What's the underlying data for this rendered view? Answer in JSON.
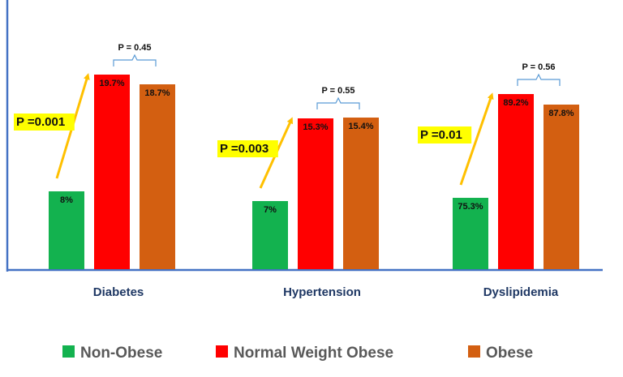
{
  "colors": {
    "non_obese": "#13b24f",
    "normal_weight_obese": "#ff0000",
    "obese": "#d35f11",
    "axis": "#4472c4",
    "arrow": "#ffc000",
    "highlight": "#ffff00",
    "bracket": "#5b9bd5",
    "category_text": "#1f3864",
    "legend_text": "#595959"
  },
  "chart_data": {
    "type": "bar",
    "categories": [
      "Diabetes",
      "Hypertension",
      "Dyslipidemia"
    ],
    "series": [
      {
        "name": "Non-Obese",
        "values": [
          8,
          7,
          75.3
        ],
        "labels": [
          "8%",
          "7%",
          "75.3%"
        ]
      },
      {
        "name": "Normal Weight Obese",
        "values": [
          19.7,
          15.3,
          89.2
        ],
        "labels": [
          "19.7%",
          "15.3%",
          "89.2%"
        ]
      },
      {
        "name": "Obese",
        "values": [
          18.7,
          15.4,
          87.8
        ],
        "labels": [
          "18.7%",
          "15.4%",
          "87.8%"
        ]
      }
    ],
    "annotations": {
      "significance": [
        "P =0.001",
        "P =0.003",
        "P =0.01"
      ],
      "bracket_p": [
        "P = 0.45",
        "P = 0.55",
        "P = 0.56"
      ]
    },
    "xlabel": "",
    "ylabel": "",
    "axis_ticks": false,
    "legend_position": "bottom",
    "note": ""
  }
}
